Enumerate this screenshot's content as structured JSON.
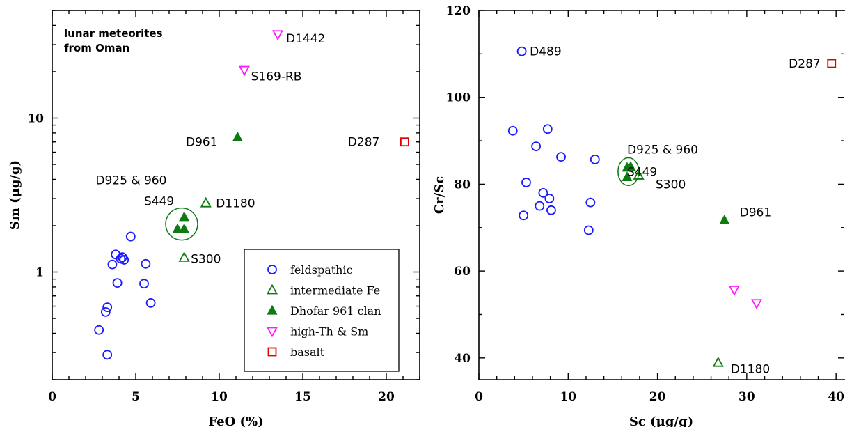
{
  "colors": {
    "feldspathic": "#1a1aff",
    "intermediate": "#0f7a12",
    "dhofar": "#0f7a12",
    "highth": "#ff1aff",
    "basalt": "#e00000"
  },
  "legend_labels": {
    "feldspathic": "feldspathic",
    "intermediate": "intermediate Fe",
    "dhofar": "Dhofar 961 clan",
    "highth": "high-Th & Sm",
    "basalt": "basalt"
  },
  "chart_data": [
    {
      "type": "scatter",
      "title": "lunar meteorites",
      "title2": "from Oman",
      "xlabel": "FeO  (%)",
      "ylabel": "Sm  (μg/g)",
      "xlim": [
        0,
        22
      ],
      "ylim": [
        0.2,
        50
      ],
      "yscale": "log",
      "xticks": [
        0,
        5,
        10,
        15,
        20
      ],
      "yticks": [
        1,
        10
      ],
      "legend": "bottom-right",
      "series": [
        {
          "key": "feldspathic",
          "marker": "circle",
          "points": [
            [
              2.8,
              0.42
            ],
            [
              3.2,
              0.55
            ],
            [
              3.3,
              0.59
            ],
            [
              3.3,
              0.29
            ],
            [
              3.6,
              1.12
            ],
            [
              3.8,
              1.3
            ],
            [
              3.9,
              0.85
            ],
            [
              4.1,
              1.22
            ],
            [
              4.2,
              1.25
            ],
            [
              4.3,
              1.2
            ],
            [
              4.7,
              1.7
            ],
            [
              5.5,
              0.84
            ],
            [
              5.6,
              1.13
            ],
            [
              5.9,
              0.63
            ]
          ]
        },
        {
          "key": "intermediate",
          "marker": "triangle-open",
          "points": [
            [
              7.9,
              1.24
            ],
            [
              9.2,
              2.8
            ]
          ]
        },
        {
          "key": "dhofar",
          "marker": "triangle-filled",
          "points": [
            [
              7.5,
              1.9
            ],
            [
              7.9,
              1.9
            ],
            [
              7.9,
              2.27
            ],
            [
              11.1,
              7.5
            ]
          ]
        },
        {
          "key": "highth",
          "marker": "triangle-down",
          "points": [
            [
              13.5,
              35
            ],
            [
              11.5,
              20.5
            ]
          ]
        },
        {
          "key": "basalt",
          "marker": "square",
          "points": [
            [
              21.1,
              7.0
            ]
          ]
        }
      ],
      "annotations": [
        {
          "text": "D1442",
          "x": 14.0,
          "y": 33
        },
        {
          "text": "S169-RB",
          "x": 11.9,
          "y": 18.7
        },
        {
          "text": "D961",
          "x": 8.0,
          "y": 7.0
        },
        {
          "text": "D287",
          "x": 17.7,
          "y": 7.0
        },
        {
          "text": "D925 & 960",
          "x": 2.6,
          "y": 3.95
        },
        {
          "text": "S449",
          "x": 5.5,
          "y": 2.9
        },
        {
          "text": "D1180",
          "x": 9.8,
          "y": 2.8
        },
        {
          "text": "S300",
          "x": 8.3,
          "y": 1.22
        }
      ],
      "highlight": {
        "x": 7.75,
        "y": 2.05
      }
    },
    {
      "type": "scatter",
      "xlabel": "Sc  (μg/g)",
      "ylabel": "Cr/Sc",
      "xlim": [
        0,
        41
      ],
      "ylim": [
        35,
        120
      ],
      "xticks": [
        0,
        10,
        20,
        30,
        40
      ],
      "yticks": [
        40,
        60,
        80,
        100,
        120
      ],
      "series": [
        {
          "key": "feldspathic",
          "marker": "circle",
          "points": [
            [
              3.8,
              92.3
            ],
            [
              4.8,
              110.6
            ],
            [
              5.0,
              72.8
            ],
            [
              5.3,
              80.4
            ],
            [
              6.4,
              88.7
            ],
            [
              6.8,
              75.0
            ],
            [
              7.2,
              78.0
            ],
            [
              7.7,
              92.7
            ],
            [
              7.9,
              76.7
            ],
            [
              8.1,
              74.0
            ],
            [
              9.2,
              86.3
            ],
            [
              12.3,
              69.4
            ],
            [
              12.5,
              75.8
            ],
            [
              13.0,
              85.7
            ]
          ]
        },
        {
          "key": "intermediate",
          "marker": "triangle-open",
          "points": [
            [
              17.9,
              82.0
            ],
            [
              26.8,
              38.9
            ]
          ]
        },
        {
          "key": "dhofar",
          "marker": "triangle-filled",
          "points": [
            [
              16.6,
              81.6
            ],
            [
              16.6,
              83.8
            ],
            [
              17.0,
              84.0
            ],
            [
              27.5,
              71.7
            ]
          ]
        },
        {
          "key": "highth",
          "marker": "triangle-down",
          "points": [
            [
              28.6,
              55.7
            ],
            [
              31.1,
              52.6
            ]
          ]
        },
        {
          "key": "basalt",
          "marker": "square",
          "points": [
            [
              39.5,
              107.8
            ]
          ]
        }
      ],
      "annotations": [
        {
          "text": "D489",
          "x": 5.7,
          "y": 110.6
        },
        {
          "text": "D287",
          "x": 34.7,
          "y": 107.8
        },
        {
          "text": "D925 & 960",
          "x": 16.6,
          "y": 88.0
        },
        {
          "text": "S449",
          "x": 16.6,
          "y": 82.9
        },
        {
          "text": "S300",
          "x": 19.8,
          "y": 80.0
        },
        {
          "text": "D961",
          "x": 29.2,
          "y": 73.6
        },
        {
          "text": "D1180",
          "x": 28.2,
          "y": 37.5
        }
      ],
      "highlight": {
        "x": 16.75,
        "y": 82.9
      }
    }
  ]
}
